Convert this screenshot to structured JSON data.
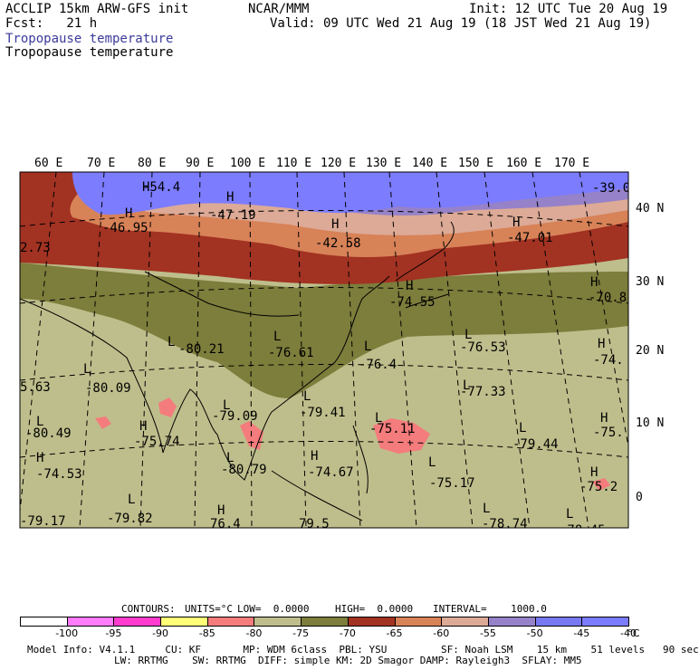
{
  "header": {
    "model_line": "ACCLIP 15km ARW-GFS init",
    "org": "NCAR/MMM",
    "init": "Init: 12 UTC Tue 20 Aug 19",
    "fcst": "Fcst:   21 h",
    "valid": "Valid: 09 UTC Wed 21 Aug 19 (18 JST Wed 21 Aug 19)",
    "field_blue": "Tropopause temperature",
    "field_black": "Tropopause temperature"
  },
  "map": {
    "lon_labels": [
      "60 E",
      "70 E",
      "80 E",
      "90 E",
      "100 E",
      "110 E",
      "120 E",
      "130 E",
      "140 E",
      "150 E",
      "160 E",
      "170 E"
    ],
    "lat_labels": [
      "40 N",
      "30 N",
      "20 N",
      "10 N",
      "0"
    ],
    "markers": [
      {
        "sym": "H",
        "val": "-54.4"
      },
      {
        "sym": "H",
        "val": "-47.19"
      },
      {
        "sym": "H",
        "val": "-46.95"
      },
      {
        "sym": "H",
        "val": "-42.58"
      },
      {
        "sym": "H",
        "val": "-47.01"
      },
      {
        "sym": "",
        "val": "-39.0"
      },
      {
        "sym": "",
        "val": "2.73"
      },
      {
        "sym": "H",
        "val": "-70.8"
      },
      {
        "sym": "H",
        "val": "-74.55"
      },
      {
        "sym": "L",
        "val": "-80.21"
      },
      {
        "sym": "L",
        "val": "-76.61"
      },
      {
        "sym": "L",
        "val": "-76.4"
      },
      {
        "sym": "L",
        "val": "-76.53"
      },
      {
        "sym": "H",
        "val": "-74."
      },
      {
        "sym": "L",
        "val": "-80.09"
      },
      {
        "sym": "",
        "val": "5.63"
      },
      {
        "sym": "L",
        "val": "-77.33"
      },
      {
        "sym": "L",
        "val": "-79.41"
      },
      {
        "sym": "L",
        "val": "-79.09"
      },
      {
        "sym": "L",
        "val": "-80.49"
      },
      {
        "sym": "H",
        "val": "-75.74"
      },
      {
        "sym": "L",
        "val": "-75.11"
      },
      {
        "sym": "L",
        "val": "-79.44"
      },
      {
        "sym": "H",
        "val": "-75."
      },
      {
        "sym": "H",
        "val": "-74.53"
      },
      {
        "sym": "L",
        "val": "-80.79"
      },
      {
        "sym": "H",
        "val": "-74.67"
      },
      {
        "sym": "L",
        "val": "-75.17"
      },
      {
        "sym": "H",
        "val": "-75.2"
      },
      {
        "sym": "L",
        "val": "-79.82"
      },
      {
        "sym": "",
        "val": "-79.17"
      },
      {
        "sym": "H",
        "val": "76.4"
      },
      {
        "sym": "",
        "val": "79.5"
      },
      {
        "sym": "L",
        "val": "-78.74"
      },
      {
        "sym": "L",
        "val": "-78.45"
      }
    ]
  },
  "contours": {
    "label": "CONTOURS:",
    "units": "UNITS=°C",
    "low": "LOW=  0.0000",
    "high": "HIGH=  0.0000",
    "interval": "INTERVAL=    1000.0"
  },
  "colorbar": {
    "colors": [
      "#ffffff",
      "#ff7cff",
      "#ff3ccf",
      "#ffff78",
      "#f47c7c",
      "#bebe8c",
      "#7d7d3c",
      "#a23222",
      "#d88258",
      "#dcaa96",
      "#9682c8",
      "#7878f0",
      "#7c7cff"
    ],
    "labels": [
      "-100",
      "-95",
      "-90",
      "-85",
      "-80",
      "-75",
      "-70",
      "-65",
      "-60",
      "-55",
      "-50",
      "-45",
      "-40"
    ],
    "unit": "°C"
  },
  "footer": {
    "line1": "Model Info: V4.1.1     CU: KF       MP: WDM 6class  PBL: YSU         SF: Noah LSM    15 km    51 levels   90 sec",
    "line2": "LW: RRTMG    SW: RRTMG  DIFF: simple KM: 2D Smagor DAMP: Rayleigh3  SFLAY: MM5"
  }
}
